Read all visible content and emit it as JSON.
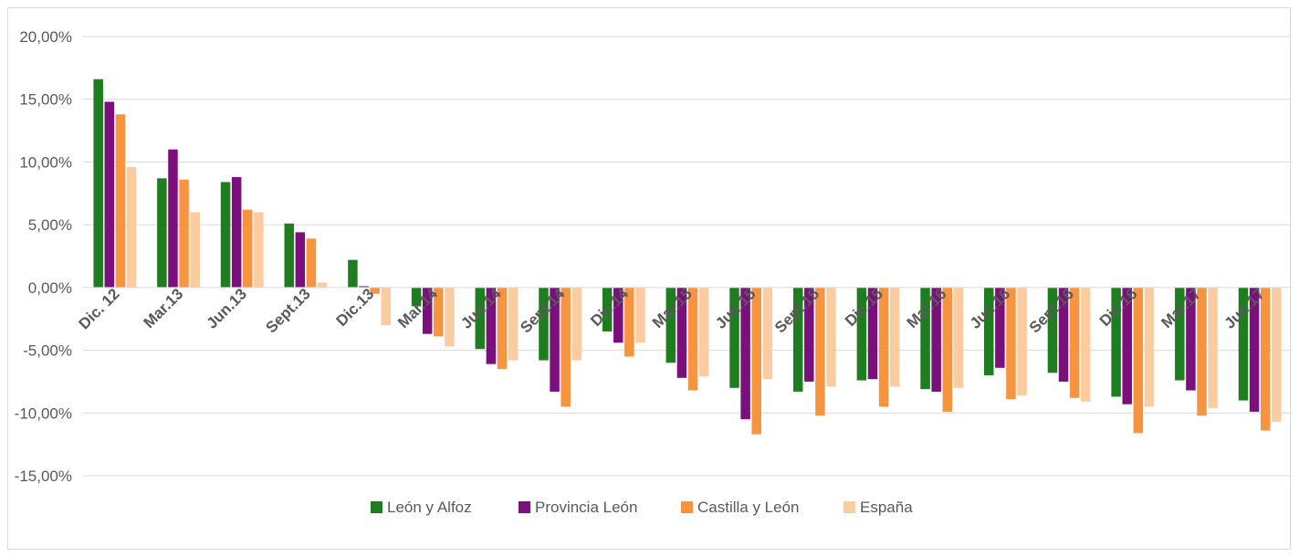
{
  "chart_data": {
    "type": "bar",
    "title": "",
    "xlabel": "",
    "ylabel": "",
    "ylim": [
      -15,
      20
    ],
    "yticks": [
      20,
      15,
      10,
      5,
      0,
      -5,
      -10,
      -15
    ],
    "ytick_labels": [
      "20,00%",
      "15,00%",
      "10,00%",
      "5,00%",
      "0,00%",
      "-5,00%",
      "-10,00%",
      "-15,00%"
    ],
    "grid": true,
    "legend_position": "bottom",
    "categories": [
      "Dic. 12",
      "Mar.13",
      "Jun.13",
      "Sept.13",
      "Dic.13",
      "Mar.14",
      "Jun.14",
      "Sept.14",
      "Dic.14",
      "Mar.15",
      "Jun.15",
      "Sept.15",
      "Dic.15",
      "Mar.16",
      "Jun.16",
      "Sept.16",
      "Dic.16",
      "Mar.17",
      "Jun.17"
    ],
    "series": [
      {
        "name": "León y Alfoz",
        "color": "#1e7d1e",
        "values": [
          16.6,
          8.7,
          8.4,
          5.1,
          2.2,
          -1.5,
          -4.9,
          -5.8,
          -3.5,
          -6.0,
          -8.0,
          -8.3,
          -7.4,
          -8.1,
          -7.0,
          -6.8,
          -8.7,
          -7.4,
          -9.0
        ]
      },
      {
        "name": "Provincia León",
        "color": "#7b0f7b",
        "values": [
          14.8,
          11.0,
          8.8,
          4.4,
          0.1,
          -3.7,
          -6.1,
          -8.3,
          -4.4,
          -7.2,
          -10.5,
          -7.5,
          -7.3,
          -8.3,
          -6.4,
          -7.5,
          -9.3,
          -8.2,
          -9.9
        ]
      },
      {
        "name": "Castilla y León",
        "color": "#f79440",
        "values": [
          13.8,
          8.6,
          6.2,
          3.9,
          -0.5,
          -3.9,
          -6.5,
          -9.5,
          -5.5,
          -8.2,
          -11.7,
          -10.2,
          -9.5,
          -9.9,
          -8.9,
          -8.8,
          -11.6,
          -10.2,
          -11.4
        ]
      },
      {
        "name": "España",
        "color": "#fbcc9f",
        "values": [
          9.6,
          6.0,
          6.0,
          0.4,
          -3.0,
          -4.7,
          -5.8,
          -5.8,
          -4.4,
          -7.1,
          -7.3,
          -7.9,
          -7.9,
          -8.0,
          -8.6,
          -9.1,
          -9.5,
          -9.6,
          -10.7
        ]
      }
    ]
  }
}
